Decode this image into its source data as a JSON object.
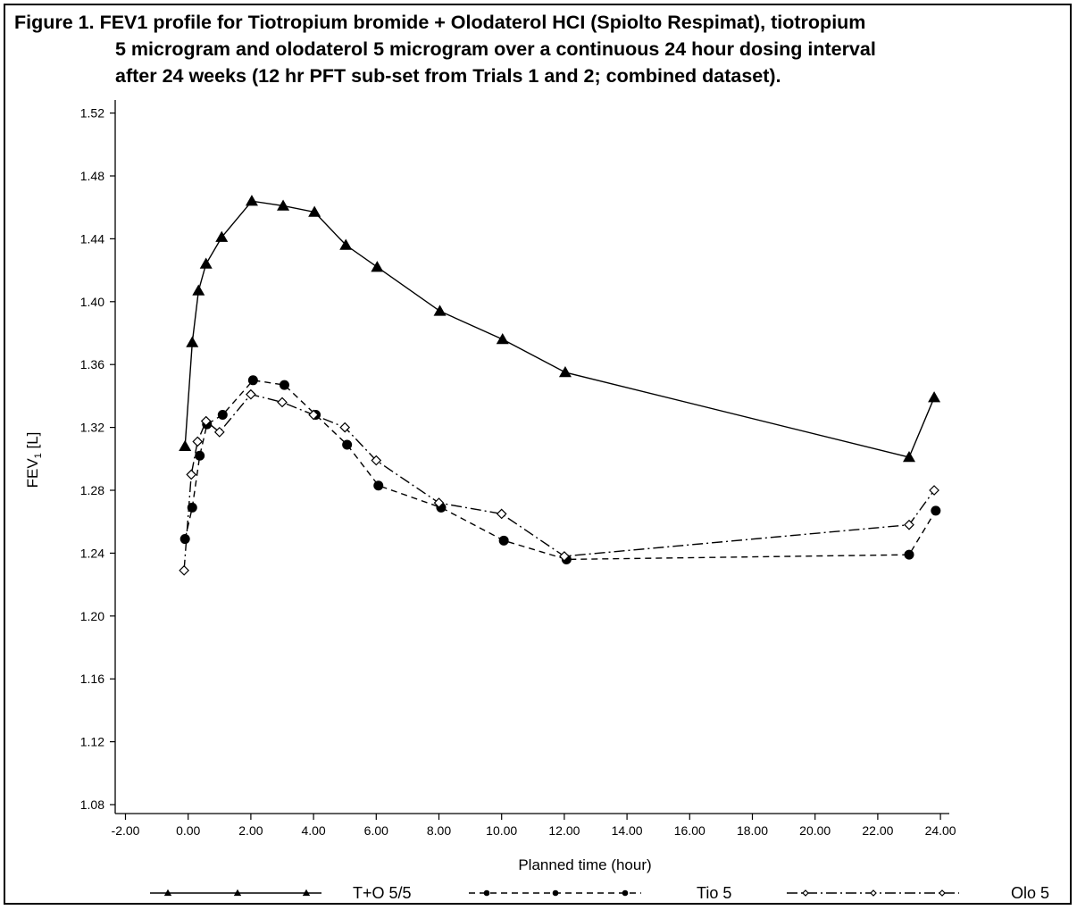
{
  "figure": {
    "title_line1": "Figure 1. FEV1 profile for Tiotropium bromide + Olodaterol HCI (Spiolto Respimat), tiotropium",
    "title_line2": "5 microgram and olodaterol 5 microgram over a continuous 24 hour dosing interval",
    "title_line3": "after 24 weeks (12 hr PFT sub-set from Trials 1 and 2; combined dataset)."
  },
  "chart_data": {
    "type": "line",
    "title": "Figure 1. FEV1 profile for Tiotropium bromide + Olodaterol HCI (Spiolto Respimat), tiotropium 5 microgram and olodaterol 5 microgram over a continuous 24 hour dosing interval after 24 weeks (12 hr PFT sub-set from Trials 1 and 2; combined dataset).",
    "xlabel": "Planned time (hour)",
    "ylabel_main": "FEV",
    "ylabel_sub": "1",
    "ylabel_unit": " [L]",
    "xlim": [
      -2,
      24
    ],
    "ylim": [
      1.08,
      1.52
    ],
    "x_ticks": [
      -2,
      0,
      2,
      4,
      6,
      8,
      10,
      12,
      14,
      16,
      18,
      20,
      22,
      24
    ],
    "x_tick_labels": [
      "-2.00",
      "0.00",
      "2.00",
      "4.00",
      "6.00",
      "8.00",
      "10.00",
      "12.00",
      "14.00",
      "16.00",
      "18.00",
      "20.00",
      "22.00",
      "24.00"
    ],
    "y_ticks": [
      1.08,
      1.12,
      1.16,
      1.2,
      1.24,
      1.28,
      1.32,
      1.36,
      1.4,
      1.44,
      1.48,
      1.52
    ],
    "y_tick_labels": [
      "1.08",
      "1.12",
      "1.16",
      "1.20",
      "1.24",
      "1.28",
      "1.32",
      "1.36",
      "1.40",
      "1.44",
      "1.48",
      "1.52"
    ],
    "grid": false,
    "legend_position": "bottom",
    "series": [
      {
        "name": "T+O 5/5",
        "marker": "triangle",
        "dash": "solid",
        "x": [
          -0.1,
          0.13,
          0.33,
          0.57,
          1.07,
          2.03,
          3.03,
          4.03,
          5.03,
          6.03,
          8.03,
          10.03,
          12.03,
          23.0,
          23.8
        ],
        "y": [
          1.308,
          1.374,
          1.407,
          1.424,
          1.441,
          1.464,
          1.461,
          1.457,
          1.436,
          1.422,
          1.394,
          1.376,
          1.355,
          1.301,
          1.339
        ]
      },
      {
        "name": "Tio 5",
        "marker": "filled-circle",
        "dash": "dashed",
        "x": [
          -0.1,
          0.13,
          0.37,
          0.6,
          1.1,
          2.07,
          3.07,
          4.07,
          5.07,
          6.07,
          8.07,
          10.07,
          12.07,
          23.0,
          23.85
        ],
        "y": [
          1.249,
          1.269,
          1.302,
          1.322,
          1.328,
          1.35,
          1.347,
          1.328,
          1.309,
          1.283,
          1.269,
          1.248,
          1.236,
          1.239,
          1.267
        ]
      },
      {
        "name": "Olo 5",
        "marker": "open-diamond",
        "dash": "dash-dot",
        "x": [
          -0.13,
          0.1,
          0.3,
          0.57,
          1.0,
          2.0,
          3.0,
          4.0,
          5.0,
          6.0,
          8.0,
          10.0,
          12.0,
          23.0,
          23.8
        ],
        "y": [
          1.229,
          1.29,
          1.311,
          1.324,
          1.317,
          1.341,
          1.336,
          1.328,
          1.32,
          1.299,
          1.272,
          1.265,
          1.238,
          1.258,
          1.28
        ]
      }
    ]
  }
}
